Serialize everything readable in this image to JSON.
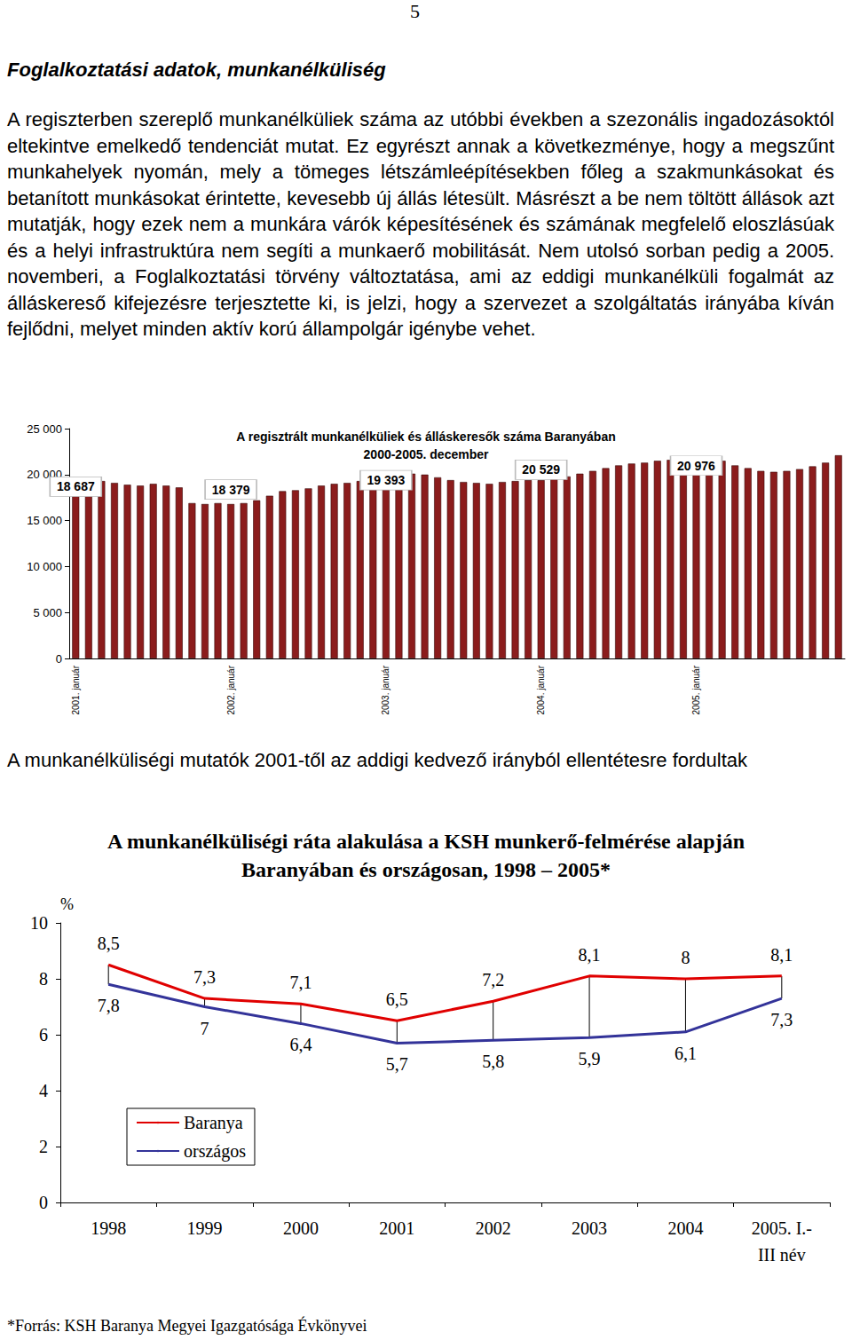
{
  "page_number": "5",
  "heading": "Foglalkoztatási adatok, munkanélküliség",
  "paragraph": "A regiszterben szereplő munkanélküliek száma az utóbbi években a szezonális ingadozásoktól eltekintve emelkedő tendenciát mutat. Ez egyrészt annak a következménye, hogy a megszűnt munkahelyek nyomán, mely a tömeges létszámleépítésekben főleg a szakmunkásokat és betanított munkásokat érintette, kevesebb új állás létesült. Másrészt a be nem töltött állások azt mutatják, hogy ezek nem a munkára várók képesítésének és számának megfelelő eloszlásúak és a helyi infrastruktúra nem segíti a munkaerő mobilitását. Nem utolsó sorban pedig a 2005. novemberi, a Foglalkoztatási törvény változtatása, ami az eddigi munkanélküli fogalmát az álláskereső kifejezésre terjesztette ki, is jelzi, hogy a szervezet a szolgáltatás irányába kíván fejlődni, melyet minden aktív korú állampolgár igénybe vehet.",
  "text_between": "A munkanélküliségi mutatók 2001-től az addigi kedvező irányból ellentétesre fordultak",
  "footnote": "*Forrás: KSH Baranya Megyei Igazgatósága Évkönyvei",
  "chart_data": [
    {
      "type": "bar",
      "title": "A regisztrált munkanélküliek és álláskeresők száma Baranyában",
      "subtitle": "2000-2005. december",
      "categories": [
        "2001. január",
        null,
        null,
        null,
        null,
        null,
        null,
        null,
        null,
        null,
        null,
        null,
        "2002. január",
        null,
        null,
        null,
        null,
        null,
        null,
        null,
        null,
        null,
        null,
        null,
        "2003. január",
        null,
        null,
        null,
        null,
        null,
        null,
        null,
        null,
        null,
        null,
        null,
        "2004. január",
        null,
        null,
        null,
        null,
        null,
        null,
        null,
        null,
        null,
        null,
        null,
        "2005. január",
        null,
        null,
        null,
        null,
        null,
        null,
        null,
        null,
        null,
        null,
        null
      ],
      "values": [
        19300,
        19400,
        19300,
        19100,
        18900,
        18800,
        19000,
        18800,
        18600,
        16900,
        16800,
        16900,
        16800,
        16900,
        17200,
        17700,
        18200,
        18300,
        18500,
        18800,
        19000,
        19100,
        19300,
        19500,
        19700,
        19900,
        20100,
        20000,
        19700,
        19400,
        19200,
        19100,
        19000,
        19200,
        19300,
        19400,
        19400,
        19600,
        19800,
        20100,
        20400,
        20700,
        21000,
        21200,
        21300,
        21500,
        21600,
        21700,
        21800,
        21700,
        21500,
        21000,
        20700,
        20400,
        20300,
        20400,
        20600,
        20900,
        21300,
        22100
      ],
      "color": "#8b1c1c",
      "ylim": [
        0,
        25000
      ],
      "yticks": [
        0,
        {
          "value": 5000,
          "label": "5 000"
        },
        {
          "value": 10000,
          "label": "10 000"
        },
        {
          "value": 15000,
          "label": "15 000"
        },
        {
          "value": 20000,
          "label": "20 000"
        },
        {
          "value": 25000,
          "label": "25 000"
        }
      ],
      "annotations": [
        {
          "x": "2001. január",
          "value": 18687,
          "label": "18 687"
        },
        {
          "x": "2002. január",
          "value": 18379,
          "label": "18 379"
        },
        {
          "x": "2003. január",
          "value": 19393,
          "label": "19 393"
        },
        {
          "x": "2004. január",
          "value": 20529,
          "label": "20 529"
        },
        {
          "x": "2005. január",
          "value": 20976,
          "label": "20 976"
        }
      ],
      "grid": false,
      "data_labels": false
    },
    {
      "type": "line",
      "title": "A munkanélküliségi ráta alakulása a KSH munkerő-felmérése alapján\nBaranyában és országosan, 1998 – 2005*",
      "y_label": "%",
      "categories": [
        "1998",
        "1999",
        "2000",
        "2001",
        "2002",
        "2003",
        "2004",
        "2005. I.-\nIII név"
      ],
      "series": [
        {
          "name": "Baranya",
          "color": "#e00000",
          "values": [
            8.5,
            7.3,
            7.1,
            6.5,
            7.2,
            8.1,
            8,
            8.1
          ],
          "value_labels": [
            "8,5",
            "7,3",
            "7,1",
            "6,5",
            "7,2",
            "8,1",
            "8",
            "8,1"
          ]
        },
        {
          "name": "országos",
          "color": "#333399",
          "values": [
            7.8,
            7,
            6.4,
            5.7,
            5.8,
            5.9,
            6.1,
            7.3
          ],
          "value_labels": [
            "7,8",
            "7",
            "6,4",
            "5,7",
            "5,8",
            "5,9",
            "6,1",
            "7,3"
          ]
        }
      ],
      "ylim": [
        0,
        10
      ],
      "yticks": [
        0,
        2,
        4,
        6,
        8,
        10
      ],
      "legend": "lower left",
      "grid": false,
      "data_labels": true
    }
  ]
}
